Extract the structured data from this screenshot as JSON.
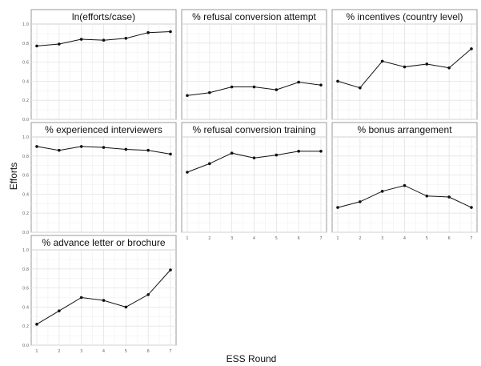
{
  "chart_data": {
    "type": "line",
    "xlabel": "ESS Round",
    "ylabel": "Efforts",
    "x": [
      1,
      2,
      3,
      4,
      5,
      6,
      7
    ],
    "x_tick_labels": [
      "1",
      "2",
      "3",
      "4",
      "5",
      "6",
      "7"
    ],
    "ylim": [
      0,
      1
    ],
    "y_ticks": [
      0,
      0.2,
      0.4,
      0.6,
      0.8,
      1.0
    ],
    "y_tick_labels": [
      "0.0",
      "0.2",
      "0.4",
      "0.6",
      "0.8",
      "1.0"
    ],
    "grid": true,
    "layout": "facet_wrap 3 columns",
    "panels": [
      {
        "title": "ln(efforts/case)",
        "values": [
          0.77,
          0.79,
          0.84,
          0.83,
          0.85,
          0.91,
          0.92
        ]
      },
      {
        "title": "% refusal conversion attempt",
        "values": [
          0.25,
          0.28,
          0.34,
          0.34,
          0.31,
          0.39,
          0.36
        ]
      },
      {
        "title": "% incentives (country level)",
        "values": [
          0.4,
          0.33,
          0.61,
          0.55,
          0.58,
          0.54,
          0.74
        ]
      },
      {
        "title": "% experienced interviewers",
        "values": [
          0.9,
          0.86,
          0.9,
          0.89,
          0.87,
          0.86,
          0.82
        ]
      },
      {
        "title": "% refusal conversion training",
        "values": [
          0.63,
          0.72,
          0.83,
          0.78,
          0.81,
          0.85,
          0.85
        ]
      },
      {
        "title": "% bonus arrangement",
        "values": [
          0.26,
          0.32,
          0.43,
          0.49,
          0.38,
          0.37,
          0.26
        ]
      },
      {
        "title": "% advance letter or brochure",
        "values": [
          0.22,
          0.36,
          0.5,
          0.47,
          0.4,
          0.53,
          0.79
        ]
      }
    ]
  }
}
